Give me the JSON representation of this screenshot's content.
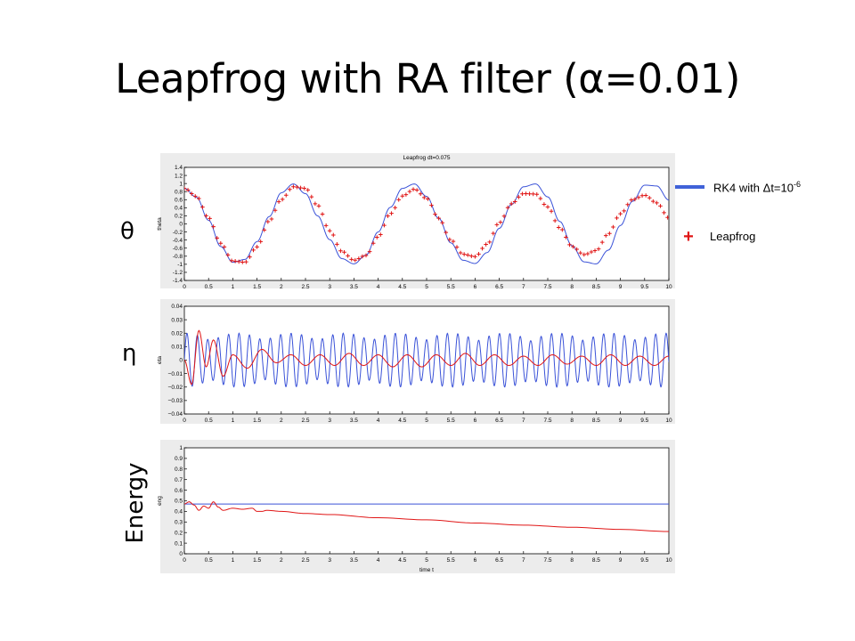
{
  "slide": {
    "title": "Leapfrog with RA filter (α=0.01)",
    "row_labels": {
      "theta": "θ",
      "eta": "η",
      "energy": "Energy"
    }
  },
  "legend": {
    "rk4": {
      "text": "RK4 with Δt=10",
      "exponent": "-6",
      "color": "#4062d8"
    },
    "leapfrog": {
      "text": "Leapfrog",
      "color": "#e01515"
    }
  },
  "chart_data": [
    {
      "type": "line",
      "title": "Leapfrog dt=0.075",
      "ylabel": "theta",
      "xlabel": "",
      "xlim": [
        0,
        10
      ],
      "ylim": [
        -1.4,
        1.4
      ],
      "xticks": [
        "0",
        "0.5",
        "1",
        "1.5",
        "2",
        "2.5",
        "3",
        "3.5",
        "4",
        "4.5",
        "5",
        "5.5",
        "6",
        "6.5",
        "7",
        "7.5",
        "8",
        "8.5",
        "9",
        "9.5",
        "10"
      ],
      "yticks": [
        "1.4",
        "1.2",
        "1",
        "0.8",
        "0.6",
        "0.4",
        "0.2",
        "0",
        "-0.2",
        "-0.4",
        "-0.6",
        "-0.8",
        "-1",
        "-1.2",
        "-1.4"
      ],
      "series": [
        {
          "color": "#3a52d8",
          "style": "line",
          "x": [
            0,
            0.25,
            0.5,
            0.75,
            1.0,
            1.25,
            1.5,
            1.75,
            2.0,
            2.25,
            2.5,
            2.75,
            3.0,
            3.25,
            3.5,
            3.75,
            4.0,
            4.25,
            4.5,
            4.75,
            5.0,
            5.25,
            5.5,
            5.75,
            6.0,
            6.25,
            6.5,
            6.75,
            7.0,
            7.25,
            7.5,
            7.75,
            8.0,
            8.25,
            8.5,
            8.75,
            9.0,
            9.25,
            9.5,
            9.75,
            10.0
          ],
          "y": [
            0.88,
            0.66,
            0.09,
            -0.56,
            -0.95,
            -0.88,
            -0.44,
            0.18,
            0.77,
            0.99,
            0.75,
            0.2,
            -0.39,
            -0.86,
            -0.99,
            -0.77,
            -0.2,
            0.41,
            0.88,
            0.99,
            0.68,
            0.14,
            -0.47,
            -0.9,
            -0.98,
            -0.71,
            -0.11,
            0.48,
            0.92,
            0.99,
            0.67,
            0.06,
            -0.54,
            -0.94,
            -0.99,
            -0.65,
            -0.04,
            0.56,
            0.96,
            0.94,
            0.59
          ]
        },
        {
          "color": "#e01515",
          "style": "plus",
          "x": [
            0,
            0.25,
            0.5,
            0.75,
            1.0,
            1.25,
            1.5,
            1.75,
            2.0,
            2.25,
            2.5,
            2.75,
            3.0,
            3.25,
            3.5,
            3.75,
            4.0,
            4.25,
            4.5,
            4.75,
            5.0,
            5.25,
            5.5,
            5.75,
            6.0,
            6.25,
            6.5,
            6.75,
            7.0,
            7.25,
            7.5,
            7.75,
            8.0,
            8.25,
            8.5,
            8.75,
            9.0,
            9.25,
            9.5,
            9.75,
            10.0
          ],
          "y": [
            0.88,
            0.68,
            0.15,
            -0.48,
            -0.92,
            -0.95,
            -0.57,
            0.07,
            0.6,
            0.92,
            0.88,
            0.46,
            -0.17,
            -0.68,
            -0.9,
            -0.78,
            -0.32,
            0.25,
            0.69,
            0.86,
            0.63,
            0.14,
            -0.4,
            -0.75,
            -0.81,
            -0.5,
            0.03,
            0.5,
            0.75,
            0.74,
            0.42,
            -0.1,
            -0.56,
            -0.76,
            -0.66,
            -0.25,
            0.25,
            0.6,
            0.71,
            0.52,
            0.15
          ]
        }
      ]
    },
    {
      "type": "line",
      "title": "",
      "ylabel": "eta",
      "xlabel": "",
      "xlim": [
        0,
        10
      ],
      "ylim": [
        -0.04,
        0.04
      ],
      "xticks": [
        "0",
        "0.5",
        "1",
        "1.5",
        "2",
        "2.5",
        "3",
        "3.5",
        "4",
        "4.5",
        "5",
        "5.5",
        "6",
        "6.5",
        "7",
        "7.5",
        "8",
        "8.5",
        "9",
        "9.5",
        "10"
      ],
      "yticks": [
        "0.04",
        "0.03",
        "0.02",
        "0.01",
        "0",
        "−0.01",
        "−0.02",
        "−0.03",
        "−0.04"
      ],
      "series": [
        {
          "color": "#3a52d8",
          "style": "line",
          "amplitude": 0.02,
          "period": 0.215,
          "envelope_period": 1.1
        },
        {
          "color": "#e01515",
          "style": "line",
          "x": [
            0,
            0.15,
            0.3,
            0.45,
            0.6,
            0.8,
            1.0,
            1.3,
            1.6,
            1.9,
            2.2,
            2.5,
            2.8,
            3.1,
            3.4,
            3.7,
            4.0,
            4.3,
            4.6,
            4.9,
            5.2,
            5.5,
            5.8,
            6.1,
            6.4,
            6.7,
            7.0,
            7.3,
            7.6,
            7.9,
            8.2,
            8.5,
            8.8,
            9.1,
            9.4,
            9.7,
            10.0
          ],
          "y": [
            0.0,
            -0.018,
            0.022,
            -0.005,
            0.015,
            -0.012,
            0.004,
            -0.006,
            0.008,
            -0.002,
            0.004,
            -0.004,
            0.004,
            -0.004,
            0.005,
            -0.004,
            0.004,
            -0.005,
            0.004,
            -0.005,
            0.004,
            -0.004,
            0.005,
            -0.004,
            0.004,
            -0.004,
            0.003,
            -0.004,
            0.004,
            -0.003,
            0.003,
            -0.004,
            0.004,
            -0.004,
            0.003,
            -0.004,
            0.003
          ]
        }
      ]
    },
    {
      "type": "line",
      "title": "",
      "ylabel": "eng",
      "xlabel": "time t",
      "xlim": [
        0,
        10
      ],
      "ylim": [
        0,
        1
      ],
      "xticks": [
        "0",
        "0.5",
        "1",
        "1.5",
        "2",
        "2.5",
        "3",
        "3.5",
        "4",
        "4.5",
        "5",
        "5.5",
        "6",
        "6.5",
        "7",
        "7.5",
        "8",
        "8.5",
        "9",
        "9.5",
        "10"
      ],
      "yticks": [
        "1",
        "0.9",
        "0.8",
        "0.7",
        "0.6",
        "0.5",
        "0.4",
        "0.3",
        "0.2",
        "0.1",
        "0"
      ],
      "series": [
        {
          "color": "#3a52d8",
          "style": "line",
          "x": [
            0,
            10
          ],
          "y": [
            0.47,
            0.47
          ]
        },
        {
          "color": "#e01515",
          "style": "line",
          "x": [
            0,
            0.1,
            0.2,
            0.3,
            0.4,
            0.5,
            0.6,
            0.7,
            0.8,
            1.0,
            1.2,
            1.4,
            1.5,
            1.6,
            1.7,
            2.0,
            2.5,
            3.0,
            4.0,
            5.0,
            6.0,
            7.0,
            8.0,
            9.0,
            10.0
          ],
          "y": [
            0.47,
            0.49,
            0.46,
            0.41,
            0.45,
            0.43,
            0.49,
            0.44,
            0.41,
            0.43,
            0.42,
            0.43,
            0.4,
            0.4,
            0.41,
            0.4,
            0.38,
            0.37,
            0.34,
            0.32,
            0.29,
            0.27,
            0.25,
            0.23,
            0.21
          ]
        }
      ]
    }
  ]
}
